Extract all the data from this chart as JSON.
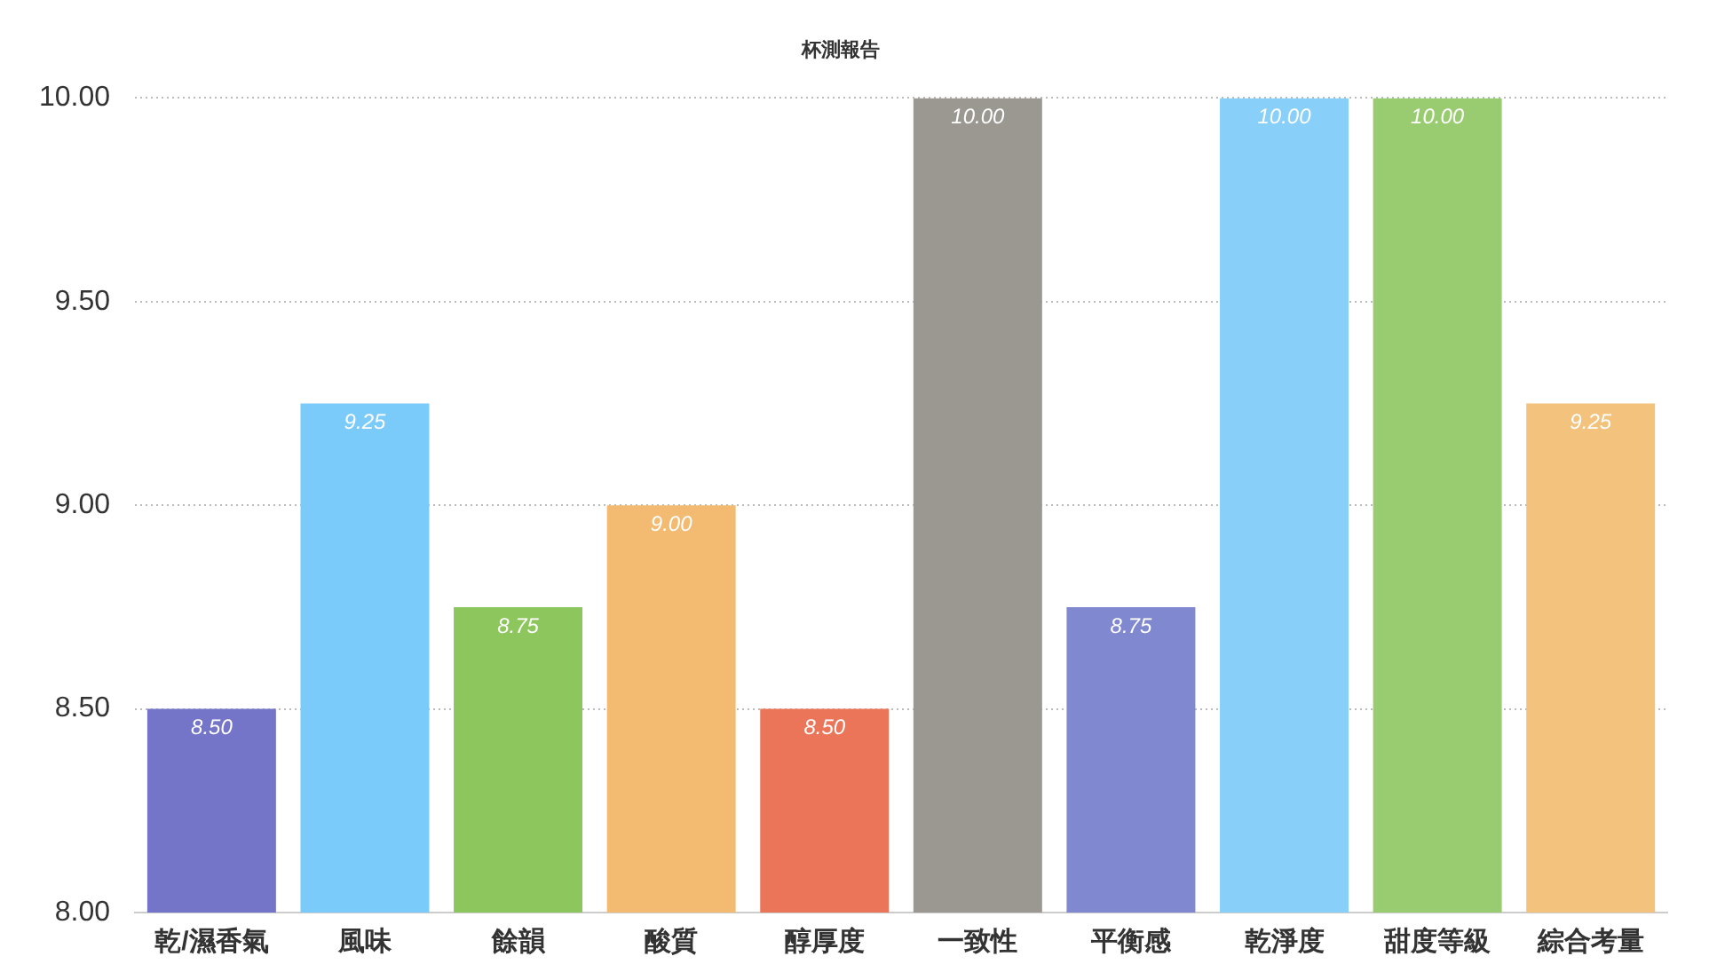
{
  "chart_data": {
    "type": "bar",
    "title": "杯測報告",
    "categories": [
      "乾/濕香氣",
      "風味",
      "餘韻",
      "酸質",
      "醇厚度",
      "一致性",
      "平衡感",
      "乾淨度",
      "甜度等級",
      "綜合考量"
    ],
    "values": [
      8.5,
      9.25,
      8.75,
      9.0,
      8.5,
      10.0,
      8.75,
      10.0,
      10.0,
      9.25
    ],
    "colors": [
      "#7474c8",
      "#7acbf9",
      "#8cc65c",
      "#f3bb72",
      "#eb7558",
      "#9a9891",
      "#8088d0",
      "#88d0f9",
      "#99cc70",
      "#f3c27c"
    ],
    "value_labels": [
      "8.50",
      "9.25",
      "8.75",
      "9.00",
      "8.50",
      "10.00",
      "8.75",
      "10.00",
      "10.00",
      "9.25"
    ],
    "ylim": [
      8,
      10
    ],
    "yticks": [
      {
        "value": 8,
        "label": "8.00"
      },
      {
        "value": 8.5,
        "label": "8.50"
      },
      {
        "value": 9,
        "label": "9.00"
      },
      {
        "value": 9.5,
        "label": "9.50"
      },
      {
        "value": 10,
        "label": "10.00"
      }
    ],
    "grid": "y",
    "legend": false
  }
}
